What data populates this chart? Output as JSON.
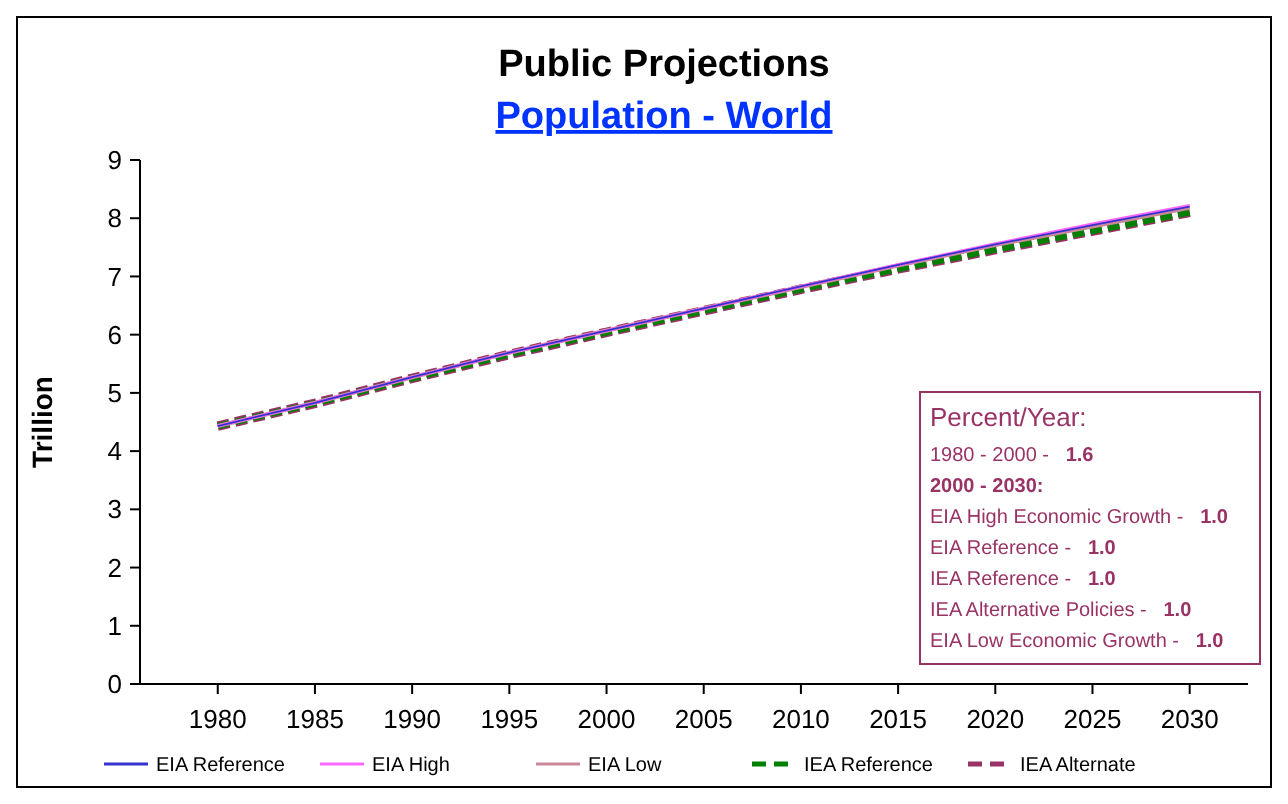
{
  "chart_data": {
    "type": "line",
    "title": "Public Projections",
    "subtitle": "Population - World",
    "ylabel": "Trillion",
    "x": [
      1980,
      1985,
      1990,
      1995,
      2000,
      2005,
      2010,
      2015,
      2020,
      2025,
      2030
    ],
    "xlim": [
      1976,
      2033
    ],
    "xticks": [
      1980,
      1985,
      1990,
      1995,
      2000,
      2005,
      2010,
      2015,
      2020,
      2025,
      2030
    ],
    "ylim": [
      0,
      9
    ],
    "yticks": [
      0,
      1,
      2,
      3,
      4,
      5,
      6,
      7,
      8,
      9
    ],
    "grid": false,
    "legend": "bottom",
    "marker": "none",
    "series": [
      {
        "name": "EIA Reference",
        "color": "#3333cc",
        "values": [
          4.43,
          4.83,
          5.27,
          5.69,
          6.07,
          6.45,
          6.83,
          7.2,
          7.55,
          7.88,
          8.2
        ]
      },
      {
        "name": "EIA High",
        "color": "#ff66ff",
        "values": [
          4.43,
          4.83,
          5.27,
          5.69,
          6.07,
          6.45,
          6.83,
          7.2,
          7.56,
          7.9,
          8.22
        ]
      },
      {
        "name": "EIA Low",
        "color": "#cc8899",
        "values": [
          4.43,
          4.83,
          5.27,
          5.69,
          6.07,
          6.45,
          6.82,
          7.19,
          7.54,
          7.86,
          8.18
        ]
      },
      {
        "name": "IEA Reference",
        "color": "#008000",
        "line_style": "dashed",
        "values": [
          4.43,
          4.82,
          5.25,
          5.66,
          6.04,
          6.41,
          6.78,
          7.13,
          7.46,
          7.78,
          8.1
        ]
      },
      {
        "name": "IEA Alternate",
        "color": "#993366",
        "line_style": "dashed",
        "values": [
          4.43,
          4.82,
          5.25,
          5.66,
          6.04,
          6.41,
          6.78,
          7.13,
          7.46,
          7.78,
          8.1
        ]
      }
    ],
    "annotations": [
      "Percent/Year:",
      "1980 - 2000 -   1.6",
      "2000 - 2030:",
      "EIA High Economic Growth -   1.0",
      "EIA Reference -   1.0",
      "IEA Reference -   1.0",
      "IEA Alternative Policies -   1.0",
      "EIA Low Economic Growth -   1.0"
    ]
  }
}
